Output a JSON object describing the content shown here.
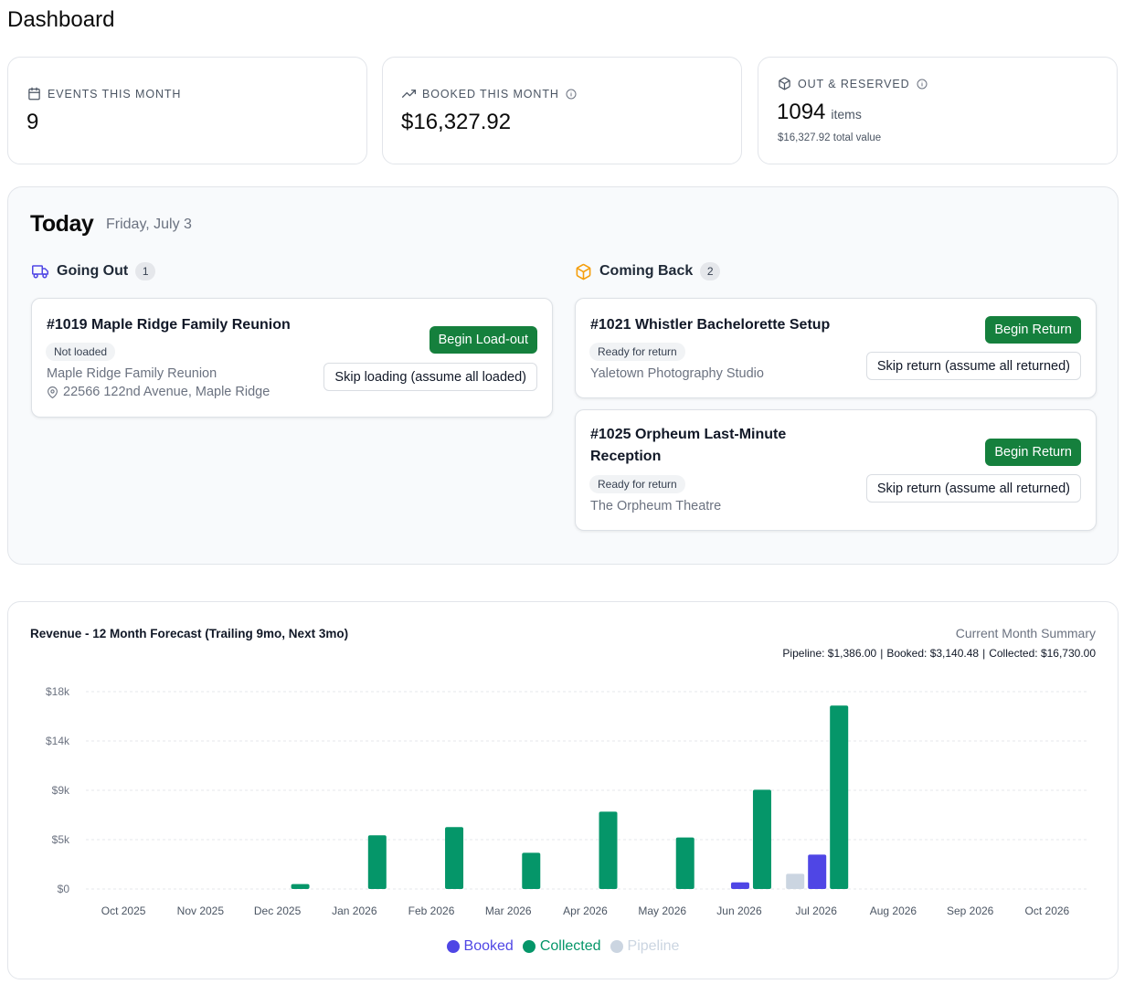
{
  "page_title": "Dashboard",
  "stats": {
    "events": {
      "label": "EVENTS THIS MONTH",
      "value": "9",
      "icon": "calendar-icon"
    },
    "booked": {
      "label": "BOOKED THIS MONTH",
      "value": "$16,327.92",
      "icon": "trending-up-icon"
    },
    "out": {
      "label": "OUT & RESERVED",
      "value": "1094",
      "unit": "items",
      "sub": "$16,327.92 total value",
      "icon": "box-icon"
    }
  },
  "today": {
    "title": "Today",
    "date": "Friday, July 3",
    "going_out": {
      "label": "Going Out",
      "count": "1",
      "events": [
        {
          "title": "#1019 Maple Ridge Family Reunion",
          "status": "Not loaded",
          "venue": "Maple Ridge Family Reunion",
          "address": "22566 122nd Avenue, Maple Ridge",
          "primary_action": "Begin Load-out",
          "secondary_action": "Skip loading (assume all loaded)"
        }
      ]
    },
    "coming_back": {
      "label": "Coming Back",
      "count": "2",
      "events": [
        {
          "title": "#1021 Whistler Bachelorette Setup",
          "status": "Ready for return",
          "venue": "Yaletown Photography Studio",
          "primary_action": "Begin Return",
          "secondary_action": "Skip return (assume all returned)"
        },
        {
          "title_line1": "#1025 Orpheum Last-Minute",
          "title_line2": "Reception",
          "status": "Ready for return",
          "venue": "The Orpheum Theatre",
          "primary_action": "Begin Return",
          "secondary_action": "Skip return (assume all returned)"
        }
      ]
    }
  },
  "revenue": {
    "summary_title": "Current Month Summary",
    "pipeline_label": "Pipeline:",
    "pipeline_value": "$1,386.00",
    "booked_label": "Booked:",
    "booked_value": "$3,140.48",
    "collected_label": "Collected:",
    "collected_value": "$16,730.00"
  },
  "chart_data": {
    "type": "bar",
    "title": "Revenue - 12 Month Forecast (Trailing 9mo, Next 3mo)",
    "categories": [
      "Oct 2025",
      "Nov 2025",
      "Dec 2025",
      "Jan 2026",
      "Feb 2026",
      "Mar 2026",
      "Apr 2026",
      "May 2026",
      "Jun 2026",
      "Jul 2026",
      "Aug 2026",
      "Sep 2026",
      "Oct 2026"
    ],
    "y_ticks": [
      "$0",
      "$5k",
      "$9k",
      "$14k",
      "$18k"
    ],
    "ylim": [
      0,
      18000
    ],
    "grid": true,
    "legend_position": "bottom-center",
    "series": [
      {
        "name": "Pipeline",
        "color": "#cbd5e1",
        "values": [
          0,
          0,
          0,
          0,
          0,
          0,
          0,
          0,
          0,
          1386,
          0,
          0,
          0
        ]
      },
      {
        "name": "Booked",
        "color": "#4f46e5",
        "values": [
          0,
          0,
          0,
          0,
          0,
          0,
          0,
          0,
          600,
          3140.48,
          0,
          0,
          0
        ]
      },
      {
        "name": "Collected",
        "color": "#059669",
        "values": [
          0,
          0,
          450,
          4900,
          5650,
          3300,
          7050,
          4700,
          9050,
          16730,
          0,
          0,
          0
        ]
      }
    ],
    "legend_order": [
      "Booked",
      "Collected",
      "Pipeline"
    ]
  }
}
